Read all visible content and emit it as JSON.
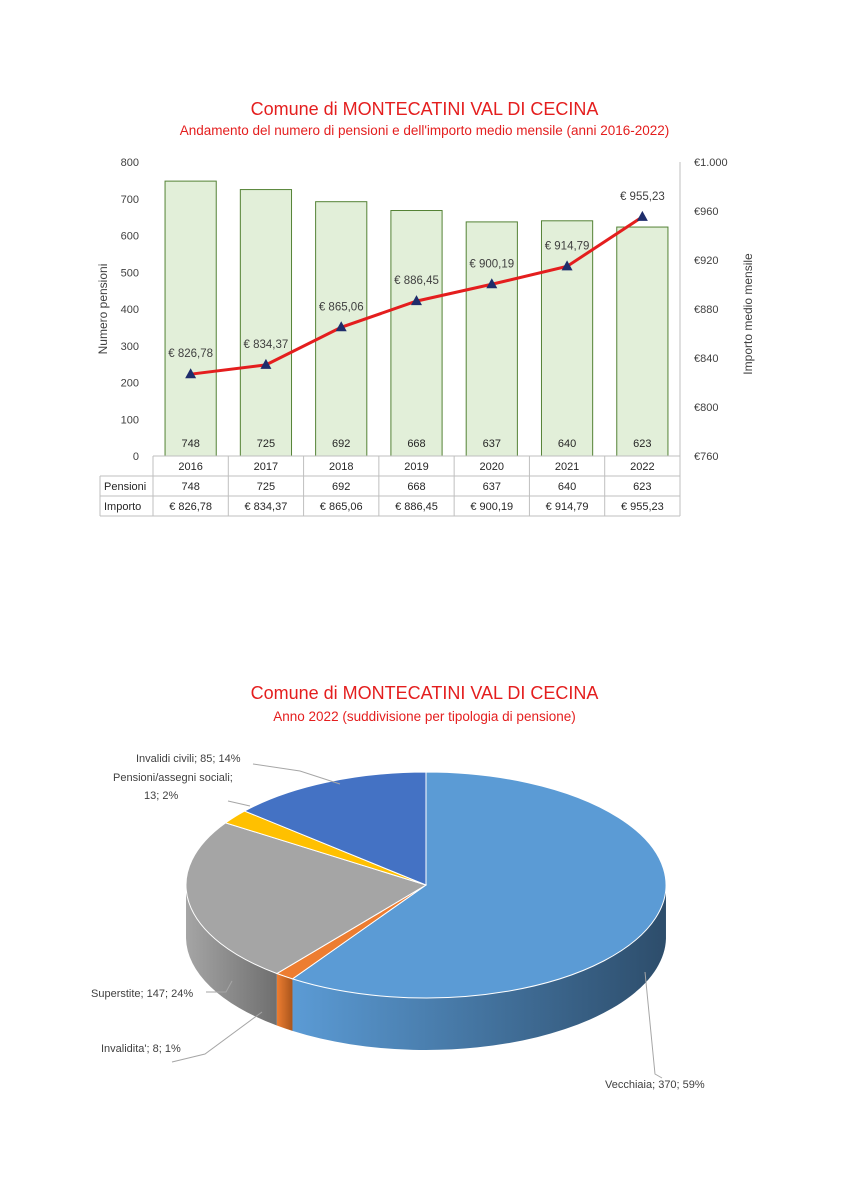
{
  "chart_data": [
    {
      "type": "bar",
      "title": "Comune di MONTECATINI VAL DI CECINA",
      "subtitle": "Andamento del numero di pensioni e dell'importo medio mensile (anni 2016-2022)",
      "categories": [
        "2016",
        "2017",
        "2018",
        "2019",
        "2020",
        "2021",
        "2022"
      ],
      "series": [
        {
          "name": "Pensioni",
          "type": "bar",
          "axis": "left",
          "values": [
            748,
            725,
            692,
            668,
            637,
            640,
            623
          ],
          "labels": [
            "748",
            "725",
            "692",
            "668",
            "637",
            "640",
            "623"
          ],
          "color": "#e2efd9",
          "border": "#548235"
        },
        {
          "name": "Importo",
          "type": "line",
          "axis": "right",
          "values": [
            826.78,
            834.37,
            865.06,
            886.45,
            900.19,
            914.79,
            955.23
          ],
          "labels": [
            "€ 826,78",
            "€ 834,37",
            "€ 865,06",
            "€ 886,45",
            "€ 900,19",
            "€ 914,79",
            "€ 955,23"
          ],
          "color": "#e41e1e",
          "marker_color": "#1f2d6b"
        }
      ],
      "ylabel": "Numero pensioni",
      "ylabel_right": "Importo medio mensile",
      "ylim": [
        0,
        800
      ],
      "ylim_right": [
        760,
        1000
      ],
      "yticks": [
        "800",
        "700",
        "600",
        "500",
        "400",
        "300",
        "200",
        "100",
        "0"
      ],
      "yticks_right": [
        "€1.000",
        "€960",
        "€920",
        "€880",
        "€840",
        "€800",
        "€760"
      ],
      "table": [
        {
          "label": "Pensioni",
          "values": [
            "748",
            "725",
            "692",
            "668",
            "637",
            "640",
            "623"
          ]
        },
        {
          "label": "Importo",
          "values": [
            "€ 826,78",
            "€ 834,37",
            "€ 865,06",
            "€ 886,45",
            "€ 900,19",
            "€ 914,79",
            "€ 955,23"
          ]
        }
      ]
    },
    {
      "type": "pie",
      "title": "Comune di MONTECATINI VAL DI CECINA",
      "subtitle": "Anno 2022 (suddivisione per tipologia di pensione)",
      "slices": [
        {
          "name": "Vecchiaia",
          "value": 370,
          "percent": 59,
          "label": "Vecchiaia; 370; 59%",
          "color": "#5b9bd5",
          "side": "#2d4d6b"
        },
        {
          "name": "Invalidita'",
          "value": 8,
          "percent": 1,
          "label": "Invalidita'; 8; 1%",
          "color": "#ed7d31",
          "side": "#a9551c"
        },
        {
          "name": "Superstite",
          "value": 147,
          "percent": 24,
          "label": "Superstite; 147; 24%",
          "color": "#a5a5a5",
          "side": "#6f6f6f"
        },
        {
          "name": "Pensioni/assegni sociali",
          "value": 13,
          "percent": 2,
          "label_lines": [
            "Pensioni/assegni sociali;",
            "13; 2%"
          ],
          "color": "#ffc000",
          "side": "#b58800"
        },
        {
          "name": "Invalidi civili",
          "value": 85,
          "percent": 14,
          "label": "Invalidi civili; 85; 14%",
          "color": "#4472c4",
          "side": "#2f4f88"
        }
      ]
    }
  ]
}
